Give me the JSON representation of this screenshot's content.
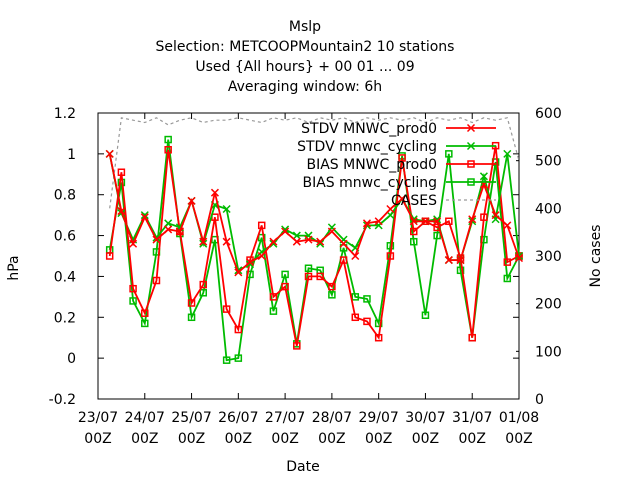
{
  "chart_data": {
    "type": "line",
    "title_lines": [
      "Mslp",
      "Selection: METCOOPMountain2     10 stations",
      "Used {All hours} + 00 01 ... 09",
      "Averaging window:  6h"
    ],
    "xlabel": "Date",
    "ylabel": "hPa",
    "y2label": "No cases",
    "ylim": [
      -0.2,
      1.2
    ],
    "y2lim": [
      0,
      600
    ],
    "xlim": [
      0,
      54
    ],
    "yticks": [
      "-0.2",
      "0",
      "0.2",
      "0.4",
      "0.6",
      "0.8",
      "1",
      "1.2"
    ],
    "y2ticks": [
      "0",
      "100",
      "200",
      "300",
      "400",
      "500",
      "600"
    ],
    "xticks": [
      {
        "x": 0,
        "line1": "23/07",
        "line2": "00Z"
      },
      {
        "x": 6,
        "line1": "24/07",
        "line2": "00Z"
      },
      {
        "x": 12,
        "line1": "25/07",
        "line2": "00Z"
      },
      {
        "x": 18,
        "line1": "26/07",
        "line2": "00Z"
      },
      {
        "x": 24,
        "line1": "27/07",
        "line2": "00Z"
      },
      {
        "x": 30,
        "line1": "28/07",
        "line2": "00Z"
      },
      {
        "x": 36,
        "line1": "29/07",
        "line2": "00Z"
      },
      {
        "x": 42,
        "line1": "30/07",
        "line2": "00Z"
      },
      {
        "x": 48,
        "line1": "31/07",
        "line2": "00Z"
      },
      {
        "x": 54,
        "line1": "01/08",
        "line2": "00Z"
      }
    ],
    "x": [
      1.5,
      3,
      4.5,
      6,
      7.5,
      9,
      10.5,
      12,
      13.5,
      15,
      16.5,
      18,
      19.5,
      21,
      22.5,
      24,
      25.5,
      27,
      28.5,
      30,
      31.5,
      33,
      34.5,
      36,
      37.5,
      39,
      40.5,
      42,
      43.5,
      45,
      46.5,
      48,
      49.5,
      51,
      52.5,
      54
    ],
    "series": [
      {
        "name": "STDV MNWC_prod0",
        "color": "#ff0000",
        "marker": "x",
        "axis": "left",
        "values": [
          1.0,
          0.72,
          0.56,
          0.69,
          0.58,
          0.63,
          0.62,
          0.77,
          0.57,
          0.81,
          0.57,
          0.42,
          0.47,
          0.5,
          0.57,
          0.62,
          0.57,
          0.58,
          0.57,
          0.62,
          0.56,
          0.5,
          0.66,
          0.67,
          0.73,
          0.78,
          0.67,
          0.67,
          0.67,
          0.48,
          0.48,
          0.68,
          0.85,
          0.7,
          0.65,
          0.49
        ]
      },
      {
        "name": "STDV mnwc_cycling",
        "color": "#00bb00",
        "marker": "x",
        "axis": "left",
        "values": [
          1.0,
          0.71,
          0.58,
          0.7,
          0.59,
          0.66,
          0.64,
          0.77,
          0.56,
          0.75,
          0.73,
          0.43,
          0.46,
          0.52,
          0.56,
          0.63,
          0.6,
          0.6,
          0.56,
          0.64,
          0.58,
          0.54,
          0.65,
          0.65,
          0.7,
          0.78,
          0.68,
          0.67,
          0.68,
          0.48,
          0.48,
          0.67,
          0.89,
          0.68,
          1.0,
          0.5
        ]
      },
      {
        "name": "BIAS MNWC_prod0",
        "color": "#ff0000",
        "marker": "square",
        "axis": "left",
        "values": [
          0.5,
          0.91,
          0.34,
          0.22,
          0.38,
          1.02,
          0.62,
          0.27,
          0.36,
          0.69,
          0.24,
          0.14,
          0.48,
          0.65,
          0.3,
          0.35,
          0.06,
          0.4,
          0.4,
          0.35,
          0.48,
          0.2,
          0.18,
          0.1,
          0.5,
          0.98,
          0.62,
          0.67,
          0.64,
          0.67,
          0.49,
          0.1,
          0.69,
          1.04,
          0.47,
          0.5
        ]
      },
      {
        "name": "BIAS mnwc_cycling",
        "color": "#00bb00",
        "marker": "square",
        "axis": "left",
        "values": [
          0.53,
          0.86,
          0.28,
          0.17,
          0.52,
          1.07,
          0.61,
          0.2,
          0.32,
          0.58,
          -0.01,
          0.0,
          0.41,
          0.59,
          0.23,
          0.41,
          0.07,
          0.44,
          0.43,
          0.31,
          0.54,
          0.3,
          0.29,
          0.17,
          0.55,
          0.99,
          0.57,
          0.21,
          0.6,
          1.0,
          0.43,
          0.1,
          0.58,
          0.96,
          0.39,
          0.5
        ]
      },
      {
        "name": "CASES",
        "color": "#999999",
        "marker": "none",
        "dashed": true,
        "axis": "right",
        "values": [
          400,
          590,
          585,
          580,
          590,
          575,
          585,
          590,
          580,
          585,
          585,
          590,
          585,
          580,
          590,
          585,
          590,
          580,
          590,
          585,
          590,
          580,
          590,
          585,
          590,
          585,
          590,
          580,
          590,
          585,
          590,
          580,
          590,
          585,
          590,
          500
        ]
      }
    ],
    "legend_position": "top-right"
  }
}
